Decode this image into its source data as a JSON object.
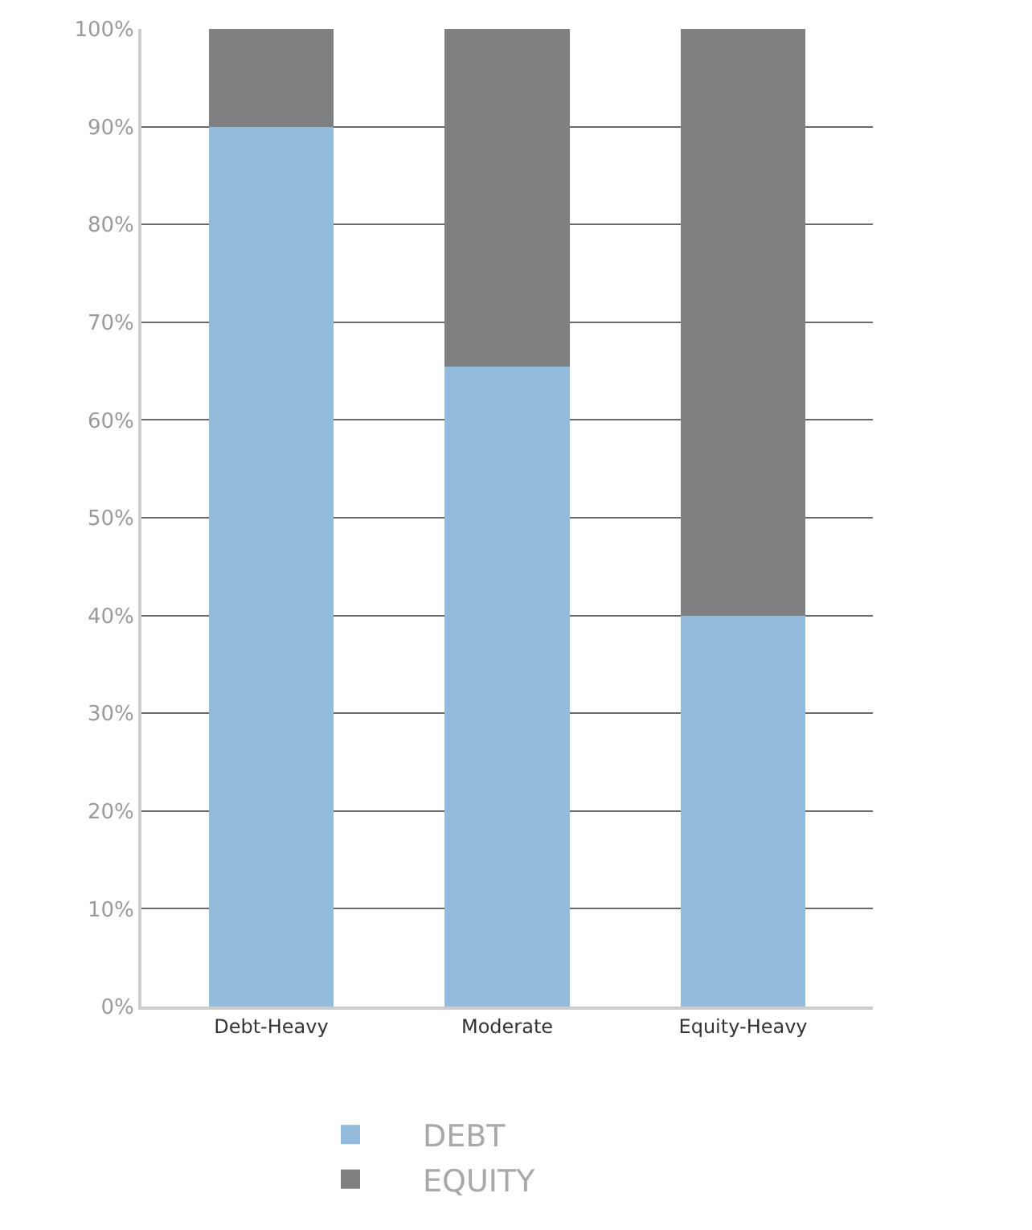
{
  "chart_data": {
    "type": "bar",
    "stacked": true,
    "categories": [
      "Debt-Heavy",
      "Moderate",
      "Equity-Heavy"
    ],
    "series": [
      {
        "name": "DEBT",
        "color": "#93bcdc",
        "values": [
          90,
          65.5,
          40
        ]
      },
      {
        "name": "EQUITY",
        "color": "#7f8082",
        "values": [
          10,
          34.5,
          60
        ]
      }
    ],
    "ylim": [
      0,
      100
    ],
    "yticks": [
      {
        "value": 0,
        "label": "0%"
      },
      {
        "value": 10,
        "label": "10%"
      },
      {
        "value": 20,
        "label": "20%"
      },
      {
        "value": 30,
        "label": "30%"
      },
      {
        "value": 40,
        "label": "40%"
      },
      {
        "value": 50,
        "label": "50%"
      },
      {
        "value": 60,
        "label": "60%"
      },
      {
        "value": 70,
        "label": "70%"
      },
      {
        "value": 80,
        "label": "80%"
      },
      {
        "value": 90,
        "label": "90%"
      },
      {
        "value": 100,
        "label": "100%"
      }
    ],
    "grid": "y",
    "legend": "bottom"
  }
}
